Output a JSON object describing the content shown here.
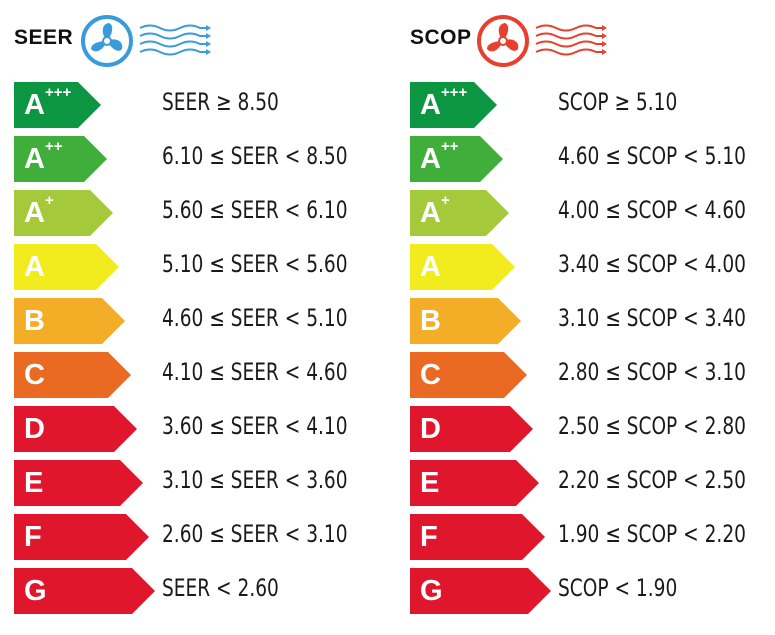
{
  "panels": [
    {
      "id": "seer",
      "title": "SEER",
      "icon_color": "#3a9bdc",
      "icon": "fan-icon",
      "rows": [
        {
          "class": "A",
          "plus": "+++",
          "range": "SEER ≥ 8.50",
          "color": "#0c9641"
        },
        {
          "class": "A",
          "plus": "++",
          "range": "6.10 ≤ SEER < 8.50",
          "color": "#3fae3a"
        },
        {
          "class": "A",
          "plus": "+",
          "range": "5.60 ≤ SEER < 6.10",
          "color": "#a4c93a"
        },
        {
          "class": "A",
          "plus": "",
          "range": "5.10 ≤ SEER < 5.60",
          "color": "#f2ec1f"
        },
        {
          "class": "B",
          "plus": "",
          "range": "4.60 ≤ SEER < 5.10",
          "color": "#f4ad27"
        },
        {
          "class": "C",
          "plus": "",
          "range": "4.10 ≤ SEER < 4.60",
          "color": "#ea6a23"
        },
        {
          "class": "D",
          "plus": "",
          "range": "3.60 ≤ SEER < 4.10",
          "color": "#e0162d"
        },
        {
          "class": "E",
          "plus": "",
          "range": "3.10 ≤ SEER < 3.60",
          "color": "#e0162d"
        },
        {
          "class": "F",
          "plus": "",
          "range": "2.60 ≤ SEER < 3.10",
          "color": "#e0162d"
        },
        {
          "class": "G",
          "plus": "",
          "range": "SEER < 2.60",
          "color": "#e0162d"
        }
      ]
    },
    {
      "id": "scop",
      "title": "SCOP",
      "icon_color": "#e8402e",
      "icon": "fan-icon",
      "rows": [
        {
          "class": "A",
          "plus": "+++",
          "range": "SCOP ≥ 5.10",
          "color": "#0c9641"
        },
        {
          "class": "A",
          "plus": "++",
          "range": "4.60 ≤ SCOP < 5.10",
          "color": "#3fae3a"
        },
        {
          "class": "A",
          "plus": "+",
          "range": "4.00 ≤ SCOP < 4.60",
          "color": "#a4c93a"
        },
        {
          "class": "A",
          "plus": "",
          "range": "3.40 ≤ SCOP < 4.00",
          "color": "#f2ec1f"
        },
        {
          "class": "B",
          "plus": "",
          "range": "3.10 ≤ SCOP < 3.40",
          "color": "#f4ad27"
        },
        {
          "class": "C",
          "plus": "",
          "range": "2.80 ≤ SCOP < 3.10",
          "color": "#ea6a23"
        },
        {
          "class": "D",
          "plus": "",
          "range": "2.50 ≤ SCOP < 2.80",
          "color": "#e0162d"
        },
        {
          "class": "E",
          "plus": "",
          "range": "2.20 ≤ SCOP < 2.50",
          "color": "#e0162d"
        },
        {
          "class": "F",
          "plus": "",
          "range": "1.90 ≤ SCOP < 2.20",
          "color": "#e0162d"
        },
        {
          "class": "G",
          "plus": "",
          "range": "SCOP < 1.90",
          "color": "#e0162d"
        }
      ]
    }
  ]
}
